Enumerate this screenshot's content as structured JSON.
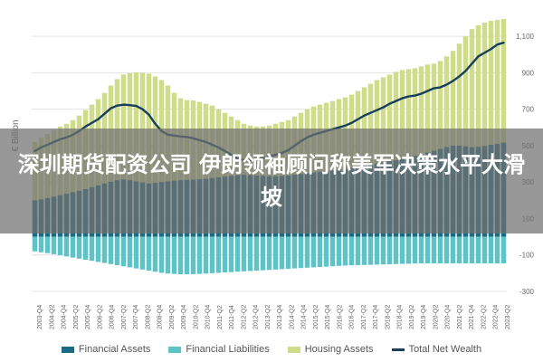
{
  "banner": {
    "headline": "深圳期货配资公司 伊朗领袖顾问称美军决策水平大滑坡"
  },
  "chart_data": {
    "type": "bar",
    "ylabel": "€ Billion",
    "ylim": [
      -300,
      1200
    ],
    "yticks": [
      -300,
      -100,
      100,
      300,
      500,
      700,
      900,
      1100
    ],
    "ytick_labels": [
      "-300",
      "-100",
      "100",
      "300",
      "500",
      "700",
      "900",
      "1,100"
    ],
    "xtick_labels": [
      "2003-Q4",
      "2004-Q2",
      "2004-Q4",
      "2005-Q2",
      "2005-Q4",
      "2006-Q2",
      "2006-Q4",
      "2007-Q2",
      "2007-Q4",
      "2008-Q2",
      "2008-Q4",
      "2009-Q2",
      "2009-Q4",
      "2010-Q2",
      "2010-Q4",
      "2011-Q2",
      "2011-Q4",
      "2012-Q2",
      "2012-Q4",
      "2013-Q2",
      "2013-Q4",
      "2014-Q2",
      "2014-Q4",
      "2015-Q2",
      "2015-Q4",
      "2016-Q2",
      "2016-Q4",
      "2017-Q2",
      "2017-Q4",
      "2018-Q2",
      "2018-Q4",
      "2019-Q2",
      "2019-Q4",
      "2020-Q2",
      "2020-Q4",
      "2021-Q2",
      "2021-Q4",
      "2022-Q2",
      "2022-Q4",
      "2023-Q2"
    ],
    "grid": true,
    "legend_position": "bottom",
    "series": [
      {
        "name": "Financial Assets",
        "color": "#1c6b86",
        "values": [
          200,
          205,
          212,
          220,
          228,
          236,
          244,
          252,
          262,
          272,
          282,
          292,
          302,
          310,
          314,
          310,
          304,
          298,
          292,
          296,
          300,
          304,
          308,
          310,
          312,
          314,
          316,
          318,
          322,
          326,
          330,
          334,
          338,
          340,
          338,
          336,
          334,
          332,
          332,
          334,
          336,
          340,
          344,
          348,
          352,
          356,
          360,
          364,
          368,
          372,
          378,
          384,
          390,
          396,
          402,
          408,
          414,
          420,
          428,
          436,
          444,
          452,
          462,
          472,
          482,
          492,
          500,
          500,
          496,
          492,
          494,
          498,
          505,
          510,
          516
        ]
      },
      {
        "name": "Financial Liabilities",
        "color": "#5ec3c6",
        "values": [
          -80,
          -85,
          -90,
          -96,
          -102,
          -108,
          -114,
          -120,
          -126,
          -132,
          -138,
          -144,
          -150,
          -156,
          -162,
          -168,
          -174,
          -180,
          -186,
          -192,
          -198,
          -202,
          -204,
          -206,
          -206,
          -205,
          -204,
          -202,
          -200,
          -198,
          -196,
          -194,
          -192,
          -190,
          -188,
          -186,
          -184,
          -182,
          -180,
          -178,
          -176,
          -174,
          -172,
          -170,
          -168,
          -166,
          -164,
          -162,
          -160,
          -158,
          -157,
          -156,
          -155,
          -154,
          -153,
          -152,
          -151,
          -150,
          -149,
          -148,
          -147,
          -146,
          -146,
          -146,
          -146,
          -146,
          -146,
          -146,
          -146,
          -146,
          -146,
          -146,
          -146,
          -146,
          -146
        ]
      },
      {
        "name": "Housing Assets",
        "color": "#cfdd8a",
        "values": [
          520,
          545,
          565,
          585,
          605,
          620,
          640,
          665,
          695,
          725,
          755,
          790,
          830,
          865,
          890,
          898,
          902,
          900,
          895,
          880,
          860,
          830,
          790,
          760,
          750,
          748,
          740,
          730,
          720,
          700,
          680,
          660,
          640,
          620,
          610,
          605,
          605,
          610,
          620,
          630,
          640,
          660,
          680,
          700,
          715,
          725,
          735,
          745,
          755,
          765,
          780,
          800,
          820,
          840,
          860,
          875,
          890,
          905,
          915,
          920,
          925,
          935,
          945,
          950,
          965,
          990,
          1020,
          1060,
          1100,
          1140,
          1160,
          1175,
          1185,
          1190,
          1195
        ]
      },
      {
        "name": "Total Net Wealth",
        "color": "#183f5b",
        "line": true,
        "values": [
          470,
          490,
          505,
          520,
          535,
          545,
          560,
          580,
          605,
          625,
          645,
          675,
          705,
          720,
          725,
          722,
          718,
          700,
          670,
          620,
          580,
          560,
          555,
          550,
          548,
          540,
          530,
          520,
          505,
          490,
          470,
          450,
          430,
          420,
          418,
          420,
          430,
          440,
          450,
          460,
          475,
          500,
          525,
          545,
          560,
          570,
          580,
          590,
          600,
          610,
          625,
          645,
          665,
          680,
          695,
          710,
          730,
          745,
          760,
          770,
          775,
          785,
          800,
          815,
          820,
          835,
          855,
          880,
          910,
          950,
          990,
          1010,
          1030,
          1055,
          1065
        ]
      }
    ]
  }
}
